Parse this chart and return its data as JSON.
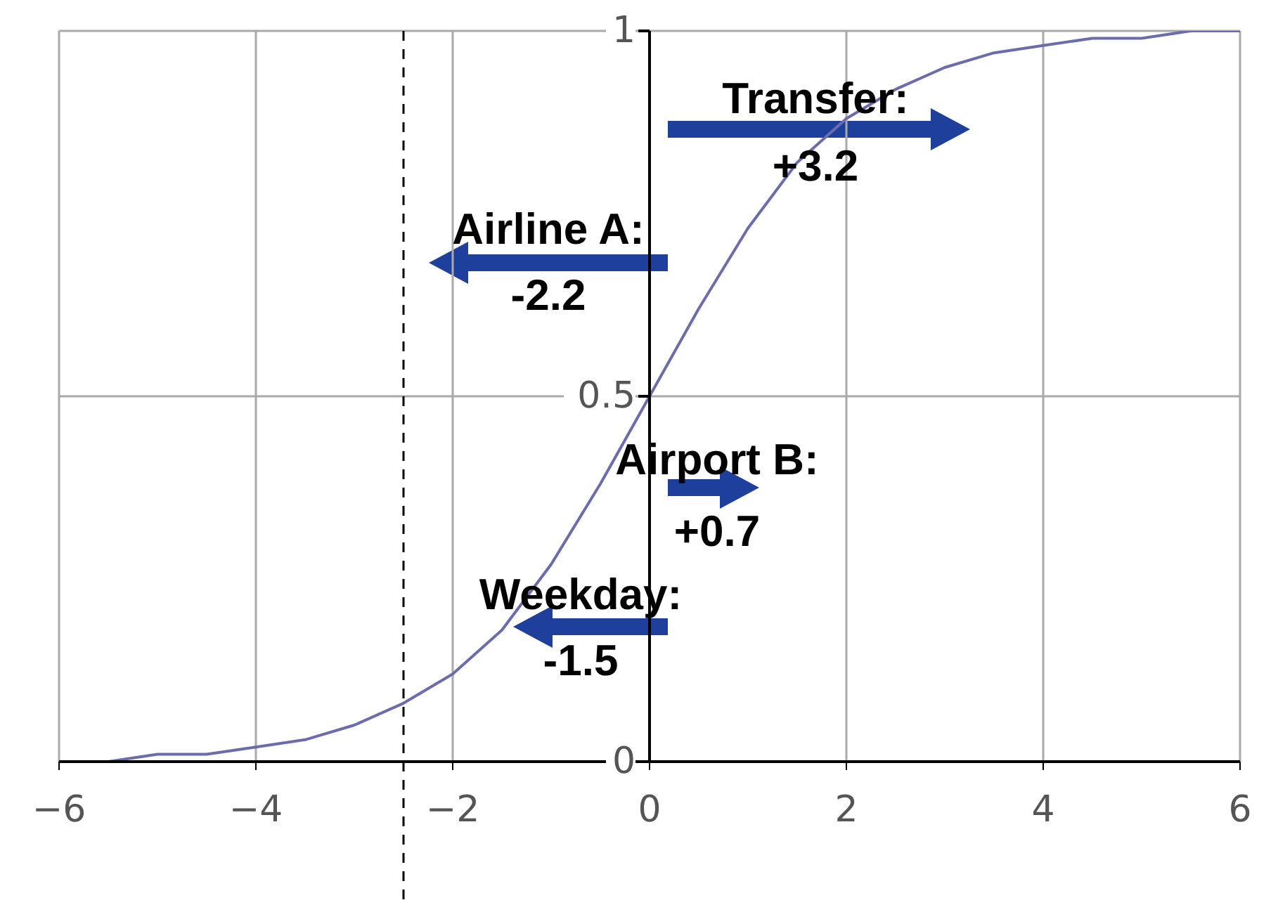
{
  "chart_data": {
    "type": "line",
    "x": [
      -6,
      -5.5,
      -5,
      -4.5,
      -4,
      -3.5,
      -3,
      -2.5,
      -2,
      -1.5,
      -1,
      -0.5,
      0,
      0.5,
      1,
      1.5,
      2,
      2.5,
      3,
      3.5,
      4,
      4.5,
      5,
      5.5,
      6
    ],
    "series": [
      {
        "color": "#6a6cae",
        "values": [
          0,
          0,
          0.01,
          0.01,
          0.02,
          0.03,
          0.05,
          0.08,
          0.12,
          0.18,
          0.27,
          0.38,
          0.5,
          0.62,
          0.73,
          0.82,
          0.88,
          0.92,
          0.95,
          0.97,
          0.98,
          0.99,
          0.99,
          1,
          1
        ]
      }
    ],
    "xlim": [
      -6,
      6
    ],
    "ylim": [
      0,
      1
    ],
    "xticks": [
      {
        "value": -6,
        "label": "−6"
      },
      {
        "value": -4,
        "label": "−4"
      },
      {
        "value": -2,
        "label": "−2"
      },
      0,
      2,
      4,
      6
    ],
    "yticks": [
      0,
      0.5,
      1
    ],
    "grid": true,
    "marker": "none",
    "ref_lines": [
      {
        "axis": "x",
        "value": -2.5,
        "color": "#000000",
        "line_style": "dashed"
      }
    ],
    "annotations": [
      "Transfer:\n+3.2",
      "Airline A:\n-2.2",
      "Airport B:\n+0.7",
      "Weekday:\n-1.5"
    ]
  }
}
